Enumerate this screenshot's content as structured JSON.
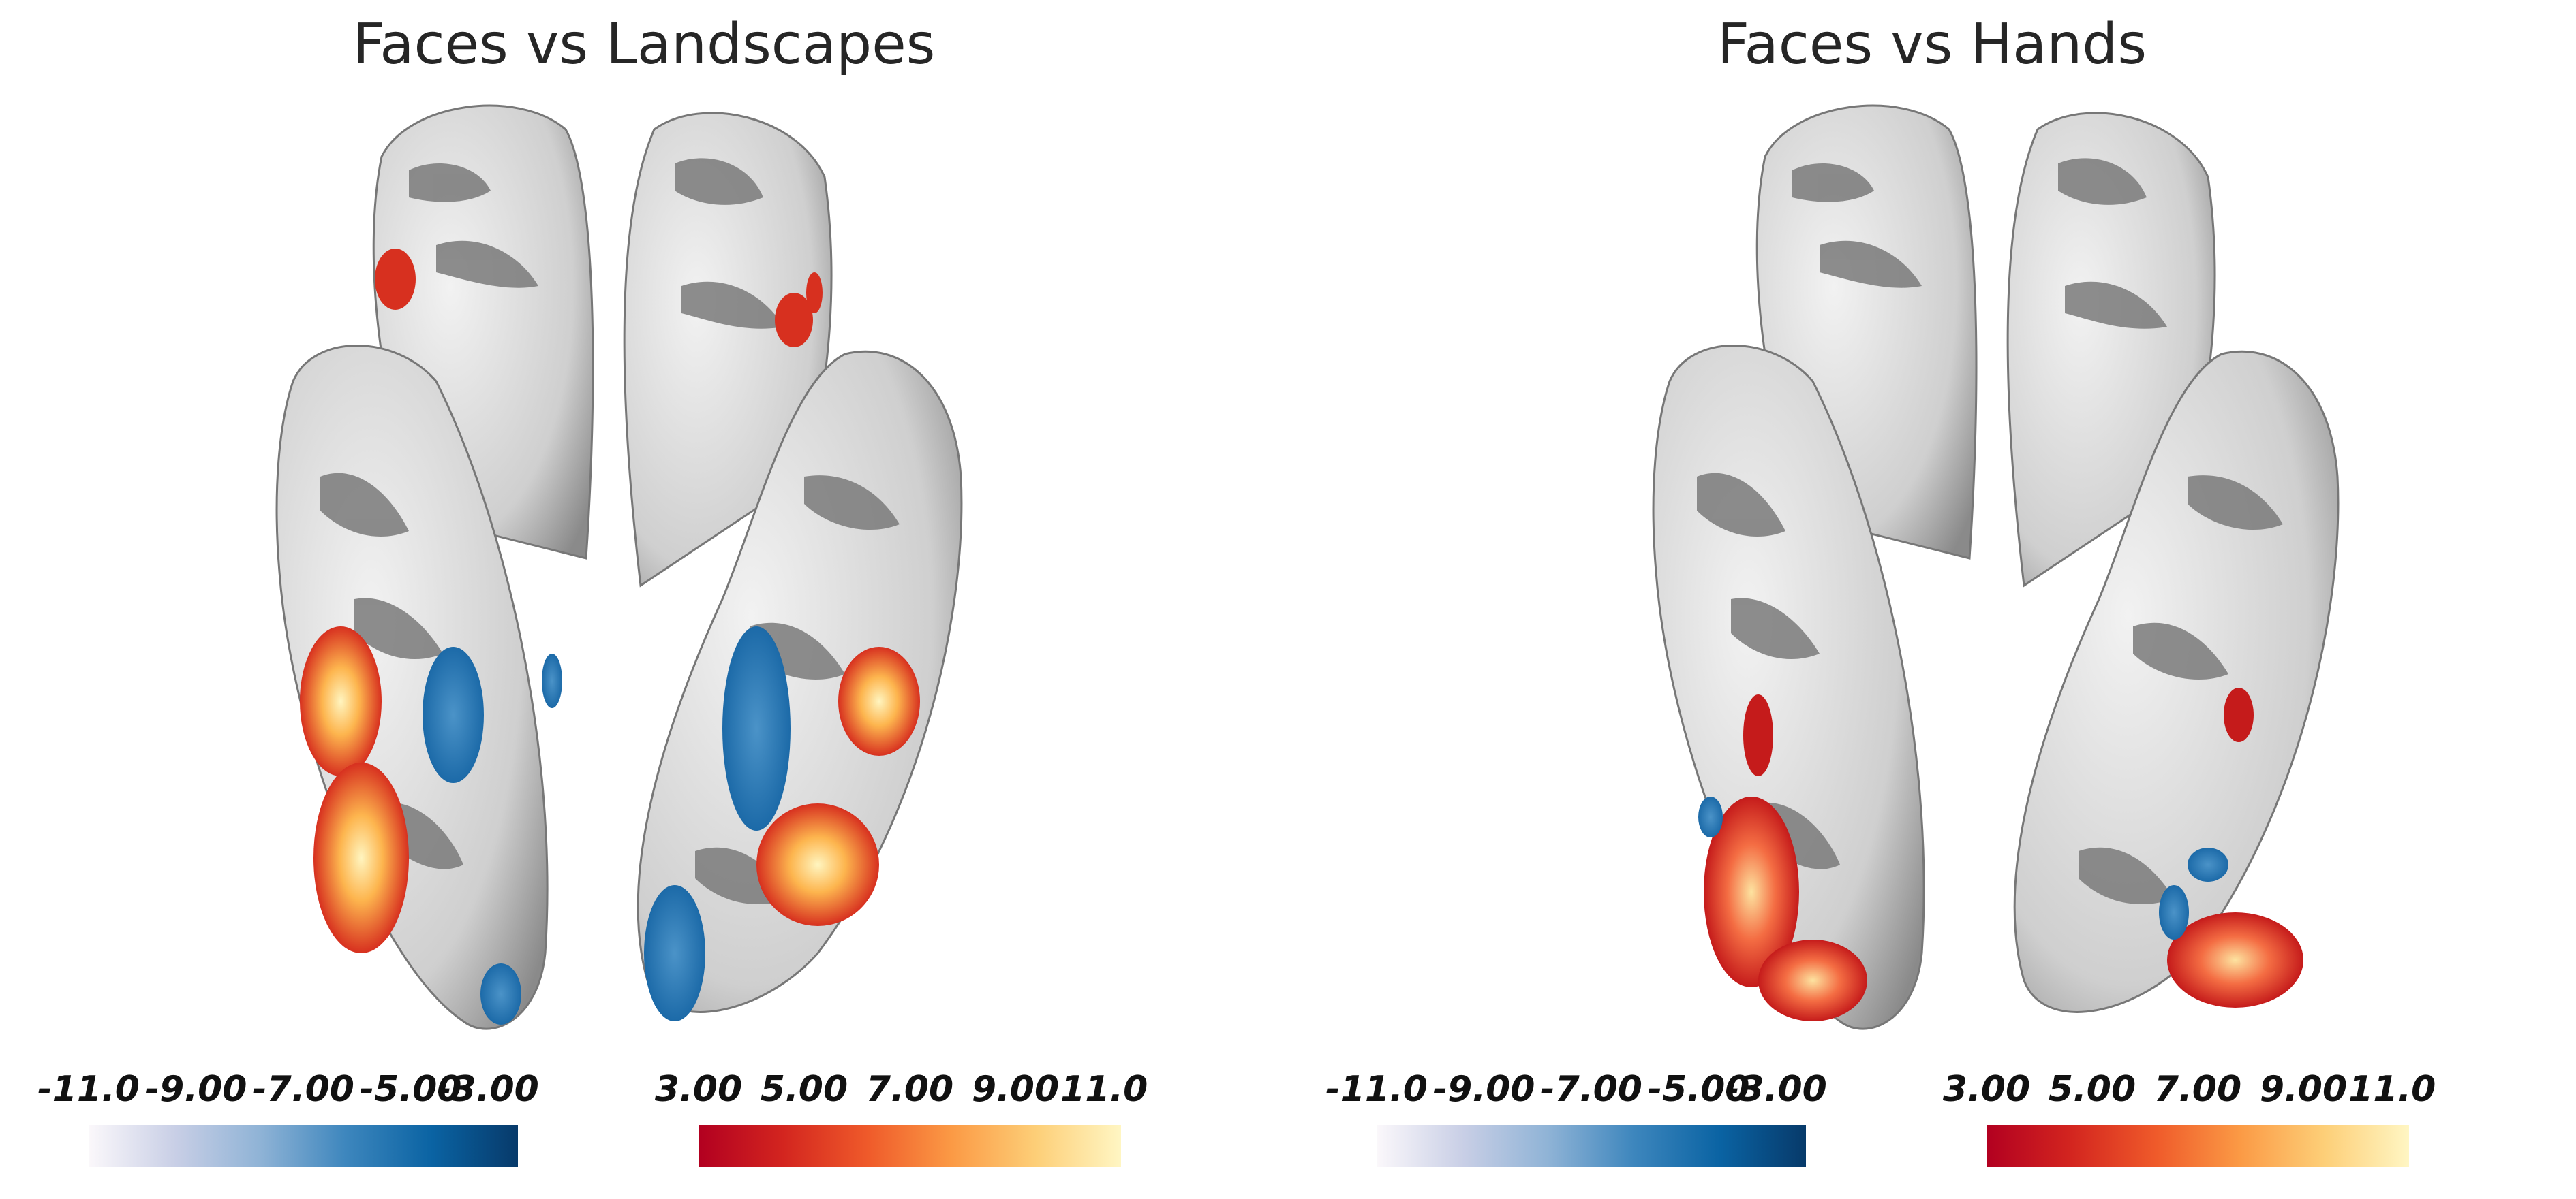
{
  "panels": [
    {
      "title": "Faces vs Landscapes",
      "colorbar_negative": {
        "ticks": [
          "-11.0",
          "-9.00",
          "-7.00",
          "-5.00",
          "-3.00"
        ],
        "colors": [
          "#fbf8fb",
          "#8fb3d6",
          "#0a63a3",
          "#073a6a"
        ]
      },
      "colorbar_positive": {
        "ticks": [
          "3.00",
          "5.00",
          "7.00",
          "9.00",
          "11.0"
        ],
        "colors": [
          "#b20020",
          "#ef5a2a",
          "#fdcf78",
          "#fff6c3"
        ]
      }
    },
    {
      "title": "Faces vs Hands",
      "colorbar_negative": {
        "ticks": [
          "-11.0",
          "-9.00",
          "-7.00",
          "-5.00",
          "-3.00"
        ],
        "colors": [
          "#fbf8fb",
          "#8fb3d6",
          "#0a63a3",
          "#073a6a"
        ]
      },
      "colorbar_positive": {
        "ticks": [
          "3.00",
          "5.00",
          "7.00",
          "9.00",
          "11.0"
        ],
        "colors": [
          "#b20020",
          "#ef5a2a",
          "#fdcf78",
          "#fff6c3"
        ]
      }
    }
  ]
}
